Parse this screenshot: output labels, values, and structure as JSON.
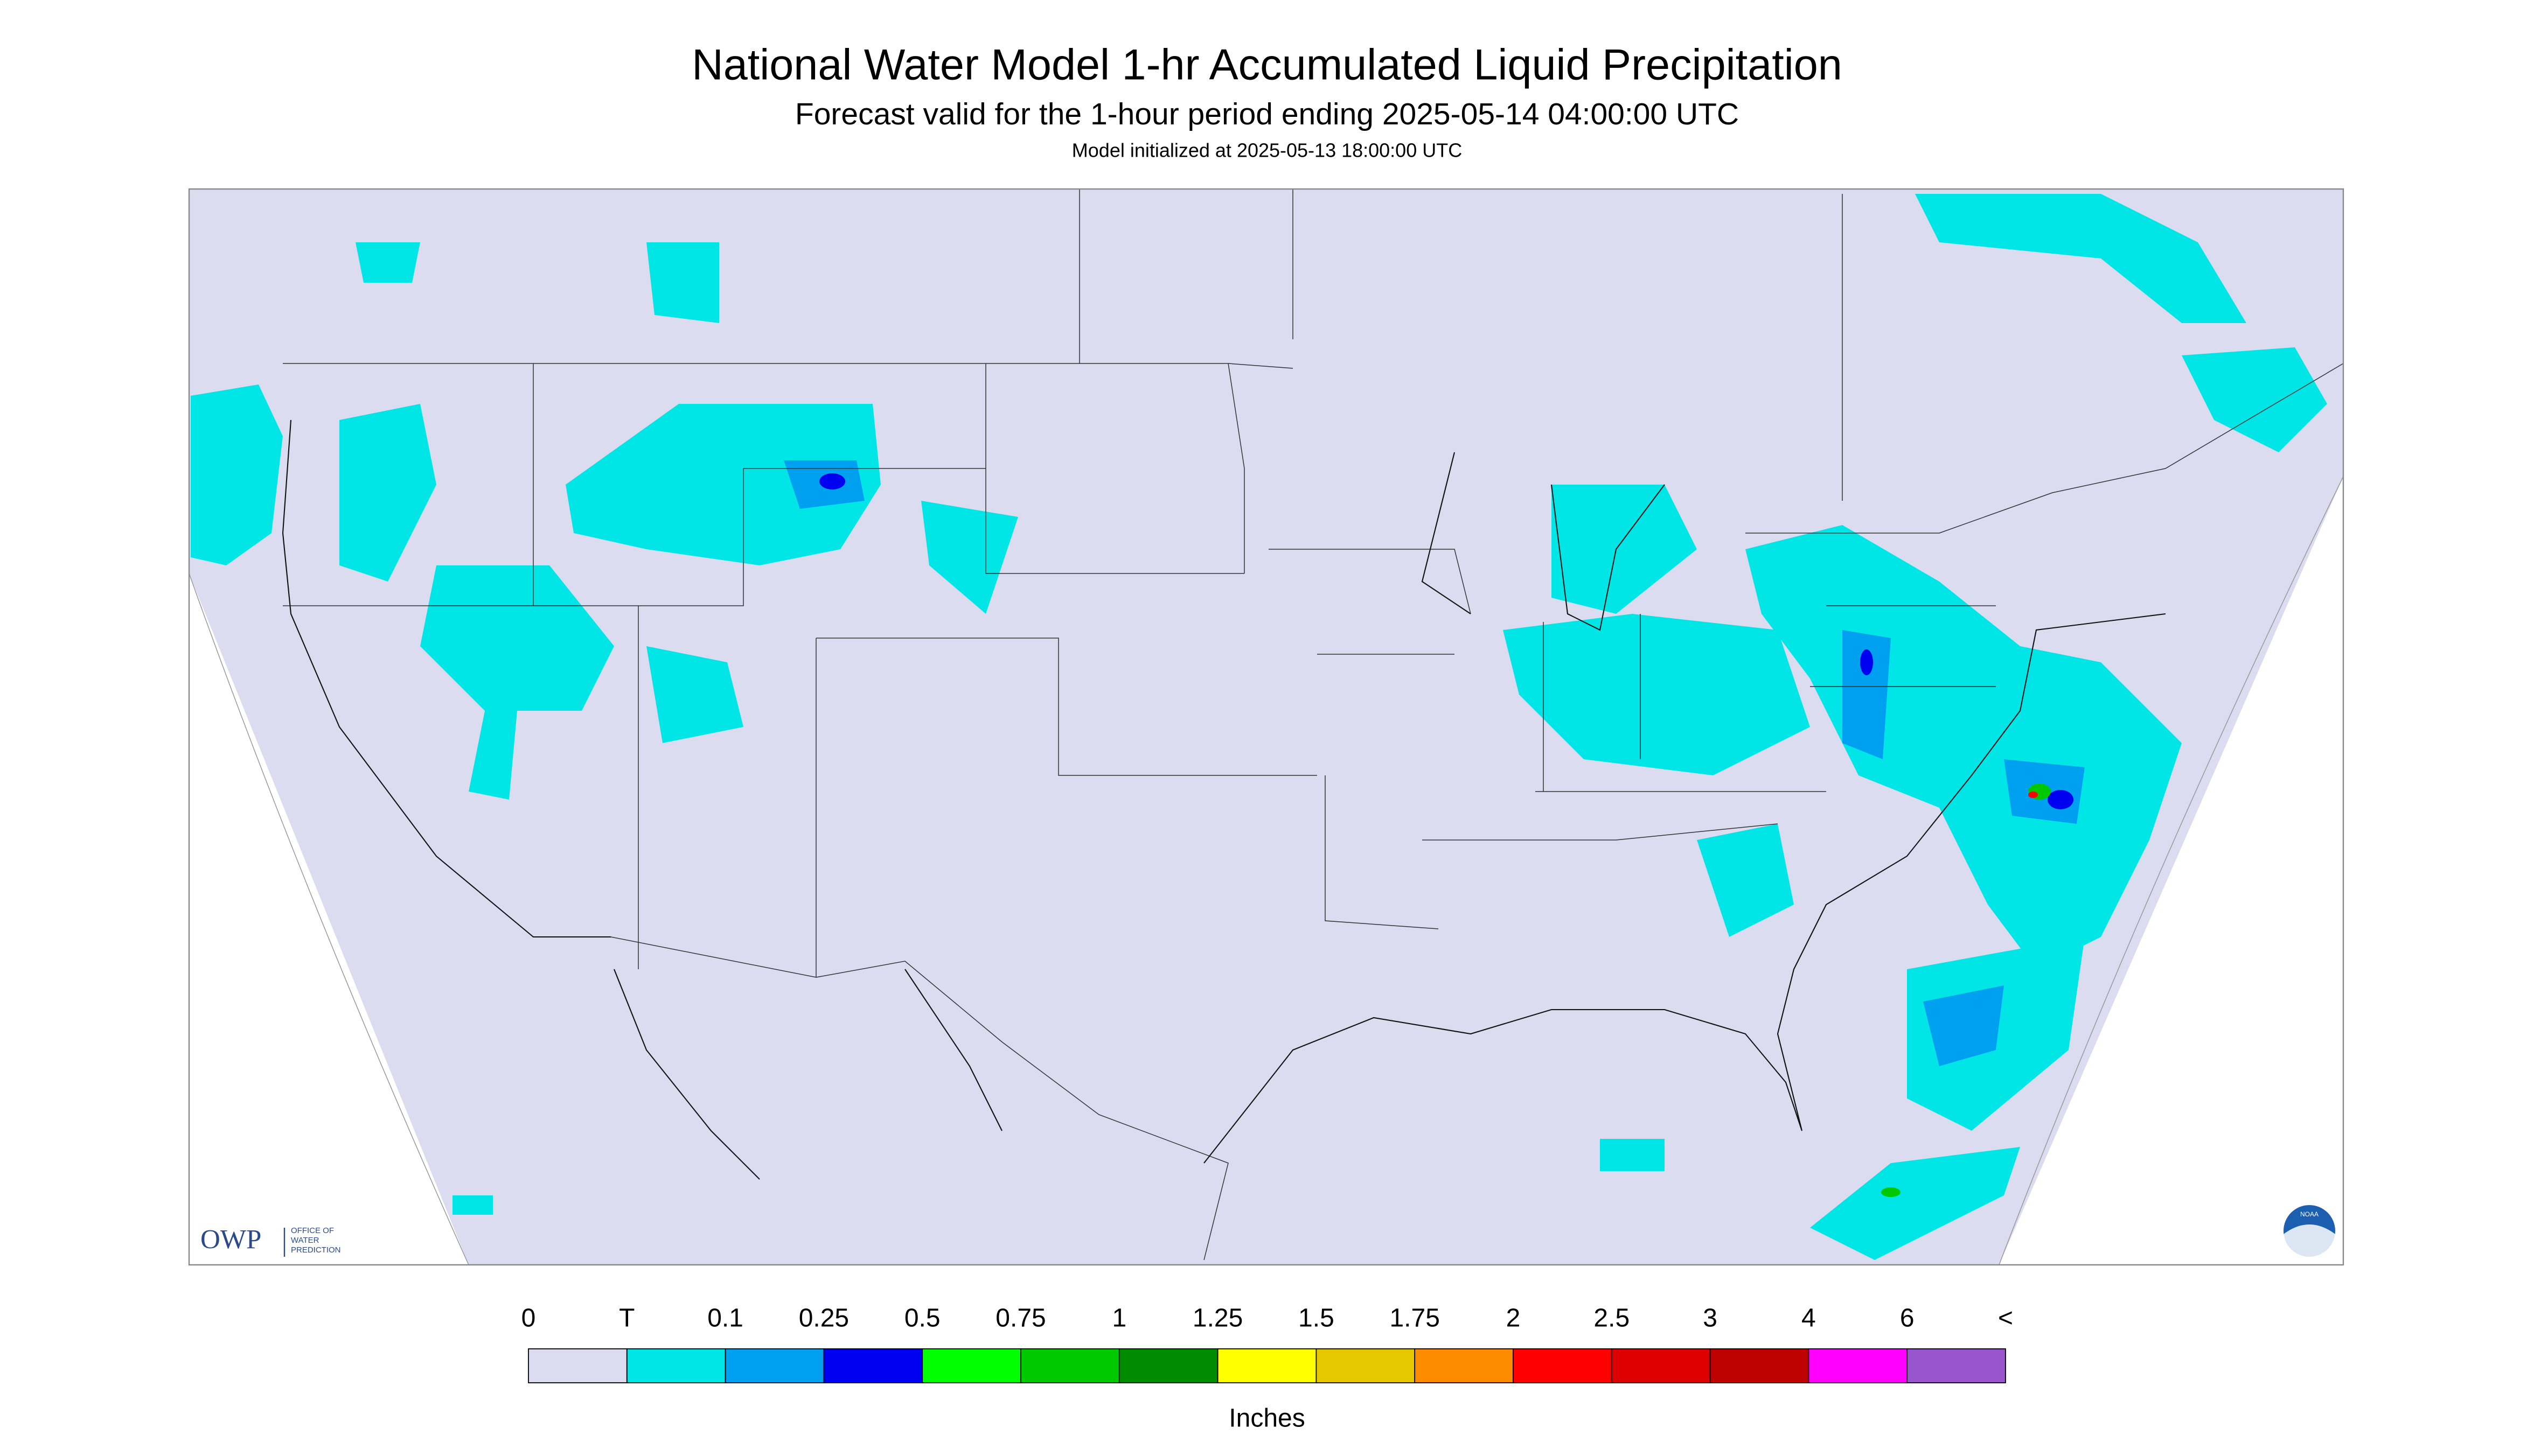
{
  "header": {
    "title": "National Water Model 1-hr Accumulated Liquid Precipitation",
    "subtitle": "Forecast valid for the 1-hour period ending 2025-05-14 04:00:00 UTC",
    "init": "Model initialized at 2025-05-13 18:00:00 UTC"
  },
  "logos": {
    "owp": "OWP",
    "owp_line1": "OFFICE OF",
    "owp_line2": "WATER",
    "owp_line3": "PREDICTION",
    "noaa": "NOAA"
  },
  "legend": {
    "labels": [
      "0",
      "T",
      "0.1",
      "0.25",
      "0.5",
      "0.75",
      "1",
      "1.25",
      "1.5",
      "1.75",
      "2",
      "2.5",
      "3",
      "4",
      "6",
      "<"
    ],
    "colors": [
      "#dcdcf0",
      "#00e6e6",
      "#00a0f0",
      "#0000f0",
      "#00ff00",
      "#00c800",
      "#008c00",
      "#ffff00",
      "#e6c800",
      "#ff8c00",
      "#ff0000",
      "#dc0000",
      "#be0000",
      "#ff00ff",
      "#9955cc"
    ],
    "unit": "Inches"
  }
}
